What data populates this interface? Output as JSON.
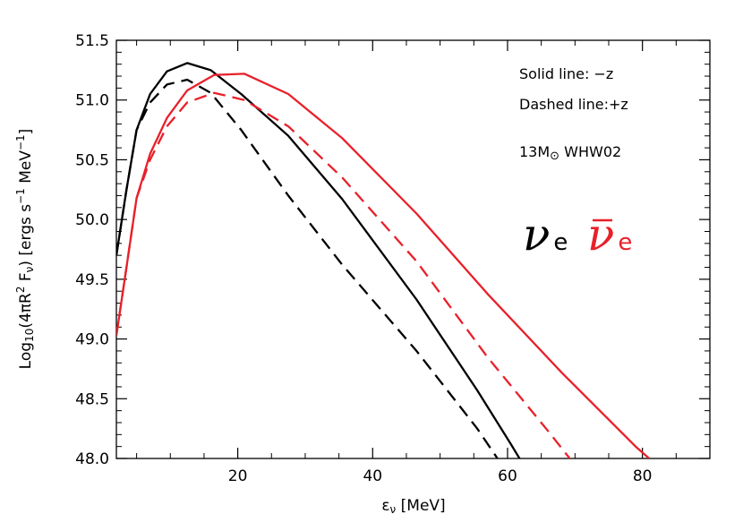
{
  "chart_data": {
    "type": "line",
    "title": "",
    "xlabel": "εν [MeV]",
    "ylabel": "Log10(4πR2 Fν) [ergs s-1 MeV-1]",
    "ylabel_parts": {
      "p1": "Log",
      "s1": "10",
      "p2": "(4πR",
      "s2": "2",
      "p3": " F",
      "s3": "ν",
      "p4": ")  [ergs s",
      "s4": "−1",
      "p5": " MeV",
      "s5": "−1",
      "p6": "]"
    },
    "xlabel_parts": {
      "sym": "ε",
      "sub": "ν",
      "rest": " [MeV]"
    },
    "xlim": [
      2,
      90
    ],
    "ylim": [
      48.0,
      51.5
    ],
    "xticks": [
      20,
      40,
      60,
      80
    ],
    "xtick_labels": [
      "20",
      "40",
      "60",
      "80"
    ],
    "yticks": [
      48.0,
      48.5,
      49.0,
      49.5,
      50.0,
      50.5,
      51.0,
      51.5
    ],
    "ytick_labels": [
      "48.0",
      "48.5",
      "49.0",
      "49.5",
      "50.0",
      "50.5",
      "51.0",
      "51.5"
    ],
    "grid": false,
    "colors": {
      "black": "#000000",
      "red": "#e8202a"
    },
    "series": [
      {
        "color": "#000000",
        "dash": "solid",
        "x": [
          2.0,
          3.5,
          5.0,
          7.0,
          9.5,
          12.5,
          16.0,
          20.5,
          27.5,
          35.5,
          46.5,
          55.5,
          60.5,
          62.0
        ],
        "y": [
          49.7,
          50.25,
          50.75,
          51.05,
          51.24,
          51.31,
          51.25,
          51.05,
          50.7,
          50.17,
          49.33,
          48.57,
          48.12,
          47.98
        ]
      },
      {
        "color": "#000000",
        "dash": "dashed",
        "x": [
          2.0,
          3.5,
          5.0,
          7.0,
          9.5,
          12.5,
          16.0,
          20.5,
          27.5,
          35.5,
          46.5,
          55.5,
          58.5
        ],
        "y": [
          49.7,
          50.25,
          50.75,
          50.98,
          51.13,
          51.17,
          51.06,
          50.75,
          50.2,
          49.62,
          48.9,
          48.25,
          48.0
        ]
      },
      {
        "color": "#e8202a",
        "dash": "solid",
        "x": [
          2.0,
          3.5,
          5.0,
          7.0,
          9.5,
          12.5,
          16.5,
          21.0,
          27.5,
          35.5,
          46.5,
          57.0,
          68.0,
          79.0,
          81.0
        ],
        "y": [
          49.03,
          49.6,
          50.18,
          50.55,
          50.85,
          51.08,
          51.21,
          51.22,
          51.05,
          50.68,
          50.05,
          49.38,
          48.72,
          48.1,
          48.0
        ]
      },
      {
        "color": "#e8202a",
        "dash": "dashed",
        "x": [
          2.0,
          3.5,
          5.0,
          7.0,
          9.5,
          12.5,
          16.5,
          21.0,
          27.5,
          35.5,
          46.5,
          57.0,
          66.0,
          69.5
        ],
        "y": [
          49.03,
          49.6,
          50.18,
          50.5,
          50.78,
          50.98,
          51.06,
          51.0,
          50.78,
          50.35,
          49.65,
          48.85,
          48.23,
          47.98
        ]
      }
    ],
    "annotations": {
      "solid_line": "Solid line: −z",
      "dashed_line": "Dashed line:+z",
      "model_prefix": "13M",
      "model_sub": "⊙",
      "model_suffix": " WHW02",
      "nu_symbol": "ν",
      "nu_sub": "e",
      "nubar_symbol": "ν",
      "nubar_sub": "e"
    }
  }
}
